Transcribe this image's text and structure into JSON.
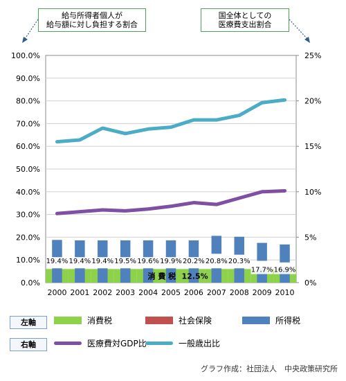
{
  "callouts": {
    "left": "給与所得者個人が\n給与額に対し負担する割合",
    "right": "国全体としての\n医療費支出割合"
  },
  "chart_data": {
    "type": "bar",
    "categories": [
      "2000",
      "2001",
      "2002",
      "2003",
      "2004",
      "2005",
      "2006",
      "2007",
      "2008",
      "2009",
      "2010"
    ],
    "left_axis": {
      "ticks": [
        "0.0%",
        "10.0%",
        "20.0%",
        "30.0%",
        "40.0%",
        "50.0%",
        "60.0%",
        "70.0%",
        "80.0%",
        "90.0%",
        "100.0%"
      ],
      "ylim": [
        0,
        100
      ]
    },
    "right_axis": {
      "ticks": [
        "0%",
        "5%",
        "10%",
        "15%",
        "20%",
        "25%"
      ],
      "ylim": [
        0,
        25
      ]
    },
    "series": [
      {
        "name": "消費税",
        "axis": "left",
        "values": [
          6,
          6,
          6,
          6,
          6,
          6,
          6,
          6,
          6,
          6,
          6
        ],
        "color": "#8ed14a"
      },
      {
        "name": "社会保険",
        "axis": "left",
        "values": [
          10.5,
          10.5,
          10.5,
          10.5,
          10.5,
          10.5,
          10.5,
          10.5,
          10.5,
          10.5,
          10.5
        ],
        "color": "#c0504d"
      },
      {
        "name": "所得税",
        "axis": "left",
        "values": [
          18.8,
          18.6,
          18.6,
          18.6,
          18.6,
          18.6,
          18.6,
          20.6,
          20.2,
          17.5,
          16.8
        ],
        "color": "#4f81bd"
      },
      {
        "name": "医療費対GDP比",
        "axis": "right",
        "values": [
          7.6,
          7.8,
          8.0,
          7.9,
          8.1,
          8.4,
          8.8,
          8.6,
          9.3,
          10.0,
          10.1
        ],
        "color": "#7f4fa3"
      },
      {
        "name": "一般歳出比",
        "axis": "right",
        "values": [
          15.5,
          15.7,
          17.0,
          16.4,
          16.9,
          17.1,
          17.9,
          17.9,
          18.4,
          19.8,
          20.1
        ],
        "color": "#4bacc6"
      }
    ],
    "data_labels": [
      "19.4%",
      "19.4%",
      "19.4%",
      "19.5%",
      "19.6%",
      "19.9%",
      "20.2%",
      "20.8%",
      "20.3%",
      "17.7%",
      "16.9%"
    ],
    "annotations": {
      "consumption_tax_label": "消 費 税",
      "consumption_tax_rate": "12.5%"
    }
  },
  "legend": {
    "left_axis_tag": "左軸",
    "right_axis_tag": "右軸",
    "items_left": [
      "消費税",
      "社会保険",
      "所得税"
    ],
    "items_right": [
      "医療費対GDP比",
      "一般歳出比"
    ]
  },
  "footer": "グラフ作成：社団法人　中央政策研究所"
}
